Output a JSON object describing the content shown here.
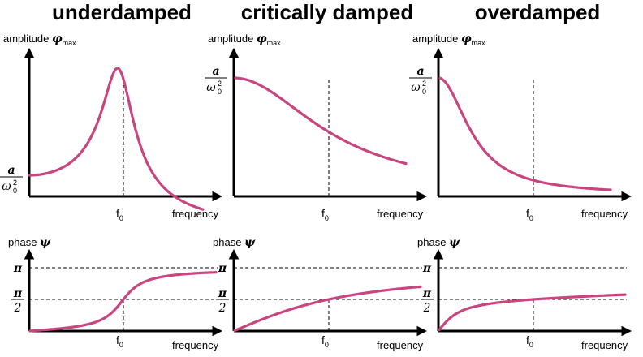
{
  "colors": {
    "curve": "#c8457f",
    "axis": "#000000"
  },
  "panels": [
    {
      "title": "underdamped",
      "amp_curve": "underdamped",
      "phase_curve": "underdamped"
    },
    {
      "title": "critically damped",
      "amp_curve": "critical",
      "phase_curve": "critical"
    },
    {
      "title": "overdamped",
      "amp_curve": "overdamped",
      "phase_curve": "overdamped"
    }
  ],
  "labels": {
    "amplitude": "amplitude",
    "amplitude_symbol": "φ",
    "amplitude_sub": "max",
    "phase": "phase",
    "phase_symbol": "ψ",
    "frequency": "frequency",
    "f0": "f",
    "f0_sub": "0",
    "frac_num": "a",
    "frac_den": "ω",
    "frac_den_sub": "0",
    "frac_den_sup": "2",
    "pi": "π",
    "half_num": "π",
    "half_den": "2"
  }
}
